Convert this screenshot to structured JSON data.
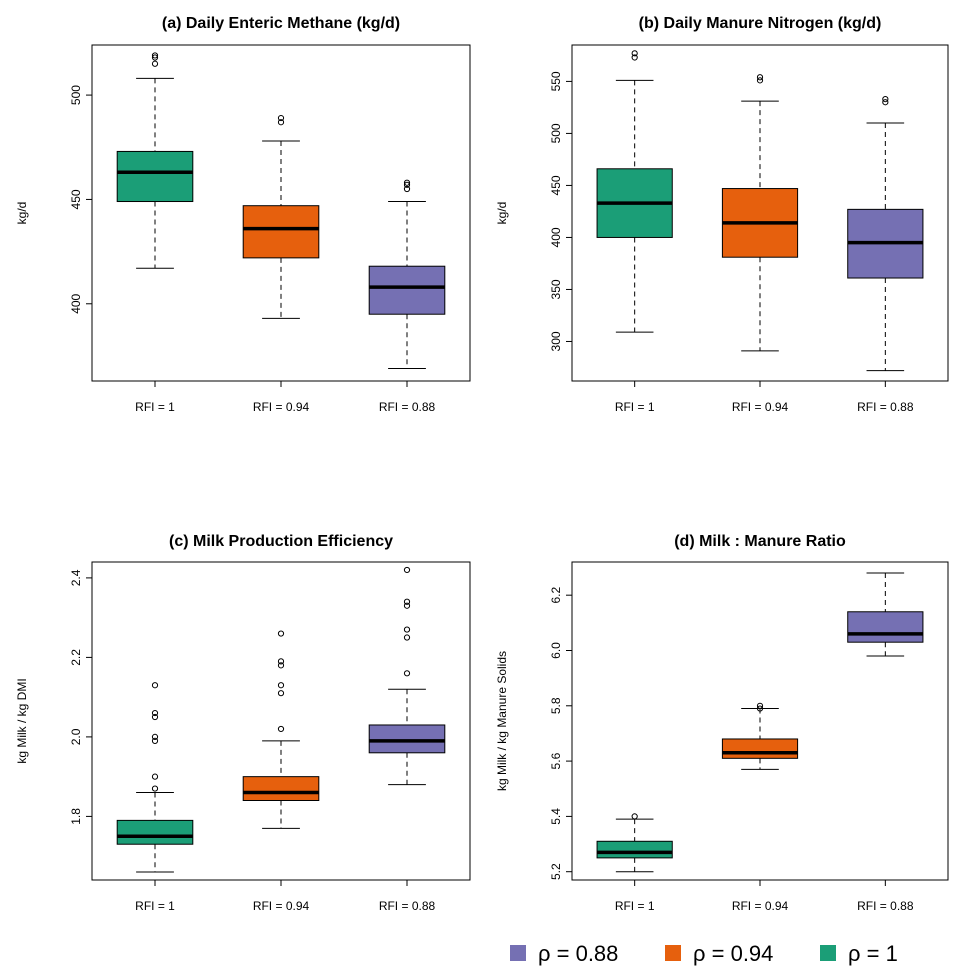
{
  "colors": {
    "rfi_1": "#1b9e77",
    "rfi_094": "#e6600d",
    "rfi_088": "#7570b3"
  },
  "legend": [
    {
      "label": "ρ = 0.88",
      "color": "#7570b3"
    },
    {
      "label": "ρ = 0.94",
      "color": "#e6600d"
    },
    {
      "label": "ρ = 1",
      "color": "#1b9e77"
    }
  ],
  "chart_data": [
    {
      "type": "box",
      "title": "(a) Daily Enteric Methane (kg/d)",
      "ylabel": "kg/d",
      "categories": [
        "RFI = 1",
        "RFI = 0.94",
        "RFI = 0.88"
      ],
      "yticks": [
        400,
        450,
        500
      ],
      "ylim": [
        363,
        524
      ],
      "boxes": [
        {
          "min": 417,
          "q1": 449,
          "median": 463,
          "q3": 473,
          "max": 508,
          "outliers": [
            515,
            518,
            519
          ]
        },
        {
          "min": 393,
          "q1": 422,
          "median": 436,
          "q3": 447,
          "max": 478,
          "outliers": [
            487,
            489
          ]
        },
        {
          "min": 369,
          "q1": 395,
          "median": 408,
          "q3": 418,
          "max": 449,
          "outliers": [
            455,
            457,
            458
          ]
        }
      ]
    },
    {
      "type": "box",
      "title": "(b) Daily Manure Nitrogen (kg/d)",
      "ylabel": "kg/d",
      "categories": [
        "RFI = 1",
        "RFI = 0.94",
        "RFI = 0.88"
      ],
      "yticks": [
        300,
        350,
        400,
        450,
        500,
        550
      ],
      "ylim": [
        262,
        585
      ],
      "boxes": [
        {
          "min": 309,
          "q1": 400,
          "median": 433,
          "q3": 466,
          "max": 551,
          "outliers": [
            573,
            577
          ]
        },
        {
          "min": 291,
          "q1": 381,
          "median": 414,
          "q3": 447,
          "max": 531,
          "outliers": [
            551,
            554
          ]
        },
        {
          "min": 272,
          "q1": 361,
          "median": 395,
          "q3": 427,
          "max": 510,
          "outliers": [
            530,
            533
          ]
        }
      ]
    },
    {
      "type": "box",
      "title": "(c) Milk Production Efficiency",
      "ylabel": "kg Milk / kg DMI",
      "categories": [
        "RFI = 1",
        "RFI = 0.94",
        "RFI = 0.88"
      ],
      "yticks": [
        1.8,
        2.0,
        2.2,
        2.4
      ],
      "ylim": [
        1.64,
        2.44
      ],
      "boxes": [
        {
          "min": 1.66,
          "q1": 1.73,
          "median": 1.75,
          "q3": 1.79,
          "max": 1.86,
          "outliers": [
            1.87,
            1.9,
            1.99,
            2.0,
            2.05,
            2.06,
            2.13
          ]
        },
        {
          "min": 1.77,
          "q1": 1.84,
          "median": 1.86,
          "q3": 1.9,
          "max": 1.99,
          "outliers": [
            2.02,
            2.11,
            2.13,
            2.18,
            2.19,
            2.26
          ]
        },
        {
          "min": 1.88,
          "q1": 1.96,
          "median": 1.99,
          "q3": 2.03,
          "max": 2.12,
          "outliers": [
            2.16,
            2.25,
            2.27,
            2.33,
            2.34,
            2.42
          ]
        }
      ]
    },
    {
      "type": "box",
      "title": "(d) Milk : Manure Ratio",
      "ylabel": "kg Milk / kg Manure Solids",
      "categories": [
        "RFI = 1",
        "RFI = 0.94",
        "RFI = 0.88"
      ],
      "yticks": [
        5.2,
        5.4,
        5.6,
        5.8,
        6.0,
        6.2
      ],
      "ylim": [
        5.17,
        6.32
      ],
      "boxes": [
        {
          "min": 5.2,
          "q1": 5.25,
          "median": 5.27,
          "q3": 5.31,
          "max": 5.39,
          "outliers": [
            5.4
          ]
        },
        {
          "min": 5.57,
          "q1": 5.61,
          "median": 5.63,
          "q3": 5.68,
          "max": 5.79,
          "outliers": [
            5.79,
            5.8
          ]
        },
        {
          "min": 5.98,
          "q1": 6.03,
          "median": 6.06,
          "q3": 6.14,
          "max": 6.28,
          "outliers": []
        }
      ]
    }
  ]
}
